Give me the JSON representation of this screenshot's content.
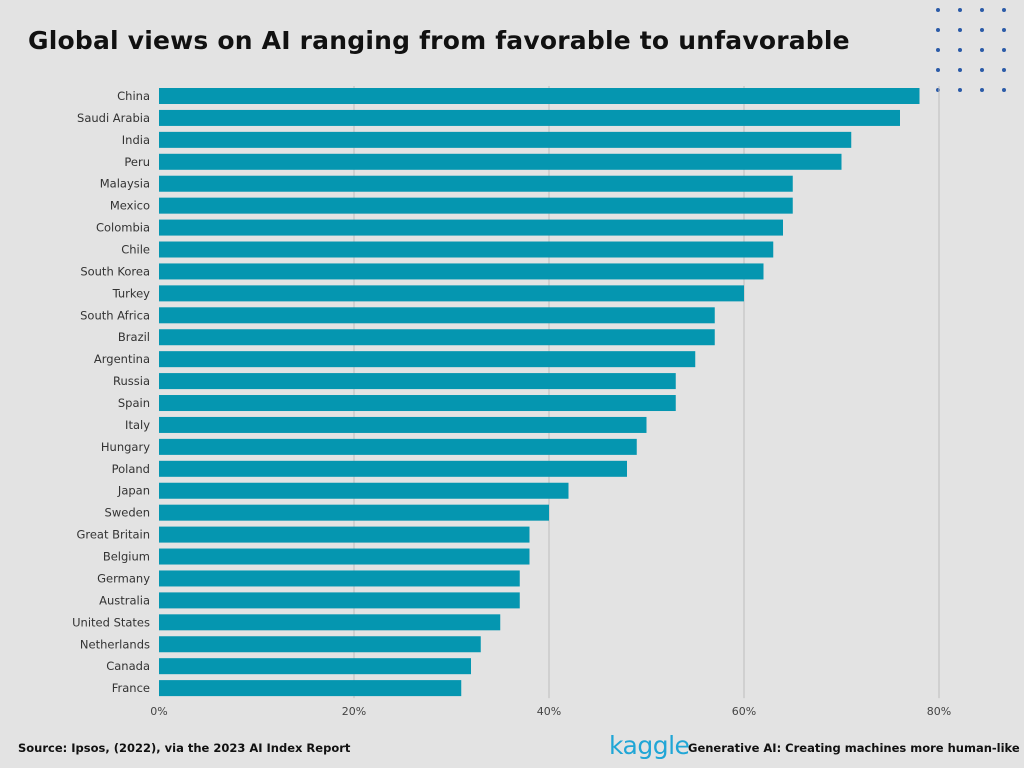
{
  "header": {
    "title": "Global views on AI ranging from favorable to unfavorable"
  },
  "footer": {
    "source": "Source:  Ipsos, (2022), via the 2023 AI Index Report",
    "logo": "kaggle",
    "tagline": "Generative AI: Creating machines more human-like"
  },
  "colors": {
    "bar": "#0596b0",
    "background": "#e3e3e3",
    "grid": "#bdbdbd",
    "dots": "#2b5ba8"
  },
  "chart_data": {
    "type": "bar",
    "orientation": "horizontal",
    "title": "Global views on AI ranging from favorable to unfavorable",
    "xlabel": "",
    "ylabel": "",
    "categories": [
      "China",
      "Saudi Arabia",
      "India",
      "Peru",
      "Malaysia",
      "Mexico",
      "Colombia",
      "Chile",
      "South Korea",
      "Turkey",
      "South Africa",
      "Brazil",
      "Argentina",
      "Russia",
      "Spain",
      "Italy",
      "Hungary",
      "Poland",
      "Japan",
      "Sweden",
      "Great Britain",
      "Belgium",
      "Germany",
      "Australia",
      "United States",
      "Netherlands",
      "Canada",
      "France"
    ],
    "values": [
      78,
      76,
      71,
      70,
      65,
      65,
      64,
      63,
      62,
      60,
      57,
      57,
      55,
      53,
      53,
      50,
      49,
      48,
      42,
      40,
      38,
      38,
      37,
      37,
      35,
      33,
      32,
      31
    ],
    "xlim": [
      0,
      80
    ],
    "xticks": [
      0,
      20,
      40,
      60,
      80
    ],
    "tick_labels": [
      "0%",
      "20%",
      "40%",
      "60%",
      "80%"
    ],
    "grid": "vertical",
    "legend": "none"
  }
}
